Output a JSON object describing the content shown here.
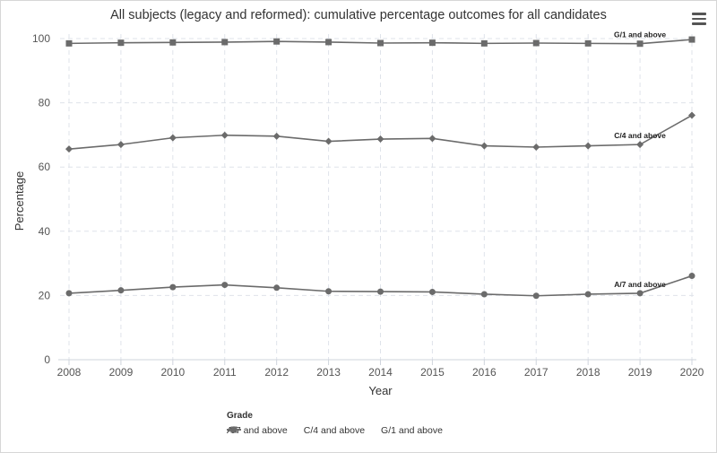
{
  "chart_data": {
    "type": "line",
    "title": "All subjects (legacy and reformed): cumulative percentage outcomes for all candidates",
    "xlabel": "Year",
    "ylabel": "Percentage",
    "ylim": [
      0,
      100
    ],
    "yticks": [
      0,
      20,
      40,
      60,
      80,
      100
    ],
    "grid": true,
    "legend_title": "Grade",
    "legend_position": "bottom",
    "categories": [
      "2008",
      "2009",
      "2010",
      "2011",
      "2012",
      "2013",
      "2014",
      "2015",
      "2016",
      "2017",
      "2018",
      "2019",
      "2020"
    ],
    "series": [
      {
        "name": "A/7 and above",
        "marker": "circle",
        "values": [
          20.7,
          21.6,
          22.6,
          23.3,
          22.4,
          21.3,
          21.2,
          21.1,
          20.4,
          19.9,
          20.4,
          20.7,
          26.1
        ],
        "label": "A/7 and above"
      },
      {
        "name": "C/4 and above",
        "marker": "diamond",
        "values": [
          65.6,
          67.0,
          69.1,
          69.9,
          69.6,
          68.0,
          68.7,
          68.9,
          66.6,
          66.2,
          66.6,
          67.0,
          76.1
        ],
        "label": "C/4 and above"
      },
      {
        "name": "G/1 and above",
        "marker": "square",
        "values": [
          98.5,
          98.7,
          98.8,
          98.9,
          99.1,
          98.9,
          98.6,
          98.7,
          98.5,
          98.6,
          98.5,
          98.4,
          99.7
        ],
        "label": "G/1 and above"
      }
    ],
    "line_color": "#6b6b6b"
  }
}
